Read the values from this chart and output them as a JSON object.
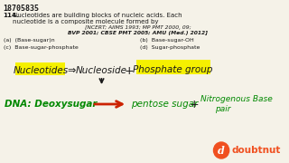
{
  "bg_color": "#f5f2e8",
  "question_id": "18705835",
  "q_num": "114.",
  "q_line1": "Nucleotides are building blocks of nucleic acids. Each",
  "q_line2": "nucleotide is a composite molecule formed by",
  "src_line1": "[NCERT; AIIMS 1993; MP PMT 2000, 09;",
  "src_line2": "BVP 2001; CBSE PMT 2005; AMU (Med.) 2012]",
  "opt_a": "(a)  (Base-sugar)n",
  "opt_b": "(b)  Base-sugar-OH",
  "opt_c": "(c)  Base-sugar-phosphate",
  "opt_d": "(d)  Sugar-phosphate",
  "yellow": "#f5f000",
  "green": "#008800",
  "black": "#1a1a1a",
  "red_arrow": "#cc2200",
  "doubtnut_red": "#e03010",
  "doubtnut_orange": "#f05020",
  "white": "#ffffff"
}
